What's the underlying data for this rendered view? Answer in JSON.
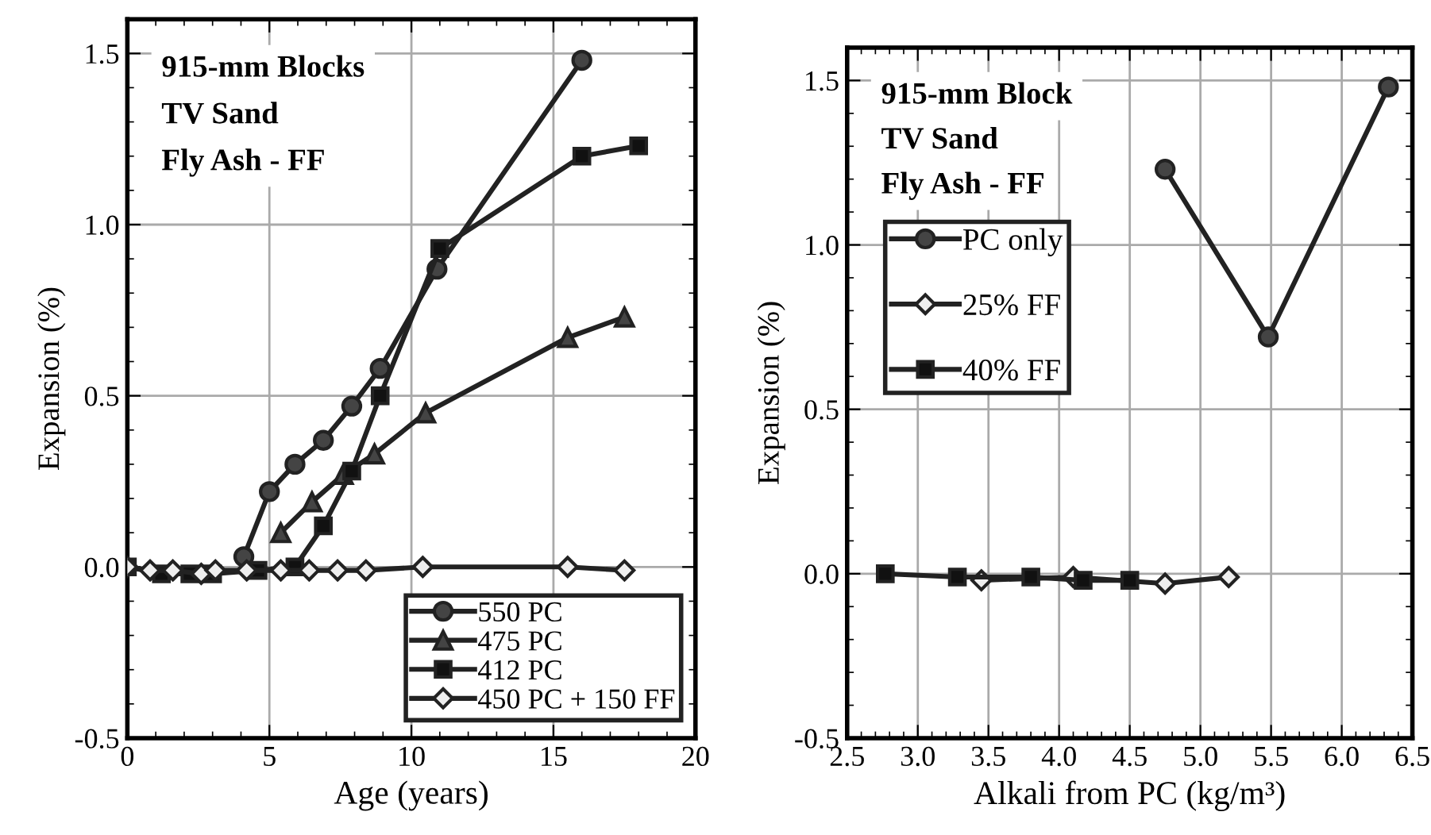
{
  "chart_data": [
    {
      "type": "line",
      "xlabel": "Age (years)",
      "ylabel": "Expansion (%)",
      "xlim": [
        0,
        20
      ],
      "xticks": [
        0,
        5,
        10,
        15,
        20
      ],
      "ylim": [
        -0.5,
        1.6
      ],
      "yticks": [
        {
          "value": -0.5,
          "label": "-0.5"
        },
        {
          "value": 0,
          "label": "0.0"
        },
        {
          "value": 0.5,
          "label": "0.5"
        },
        {
          "value": 1.0,
          "label": "1.0"
        },
        {
          "value": 1.5,
          "label": "1.5"
        }
      ],
      "grid": true,
      "legend": "bottom right",
      "annotations": [
        "915-mm Blocks",
        "TV Sand",
        "Fly Ash - FF"
      ],
      "series": [
        {
          "name": "550 PC",
          "color": "#222222",
          "marker": "circle",
          "x": [
            4.1,
            5.0,
            5.9,
            6.9,
            7.9,
            8.9,
            10.9,
            16.0
          ],
          "values": [
            0.03,
            0.22,
            0.3,
            0.37,
            0.47,
            0.58,
            0.87,
            1.48
          ]
        },
        {
          "name": "475 PC",
          "color": "#222222",
          "marker": "triangle",
          "x": [
            5.4,
            6.5,
            7.6,
            8.7,
            10.5,
            15.5,
            17.5
          ],
          "values": [
            0.1,
            0.19,
            0.27,
            0.33,
            0.45,
            0.67,
            0.73
          ]
        },
        {
          "name": "412 PC",
          "color": "#222222",
          "marker": "square",
          "x": [
            0,
            1.2,
            2.2,
            3.0,
            4.6,
            5.9,
            6.9,
            7.9,
            8.9,
            11.0,
            16.0,
            18.0
          ],
          "values": [
            0,
            -0.02,
            -0.02,
            -0.02,
            -0.01,
            0.0,
            0.12,
            0.28,
            0.5,
            0.93,
            1.2,
            1.23
          ]
        },
        {
          "name": "450 PC + 150 FF",
          "color": "#222222",
          "marker": "diamond",
          "x": [
            0,
            0.8,
            1.6,
            2.6,
            3.1,
            4.2,
            5.4,
            6.4,
            7.4,
            8.4,
            10.4,
            15.5,
            17.5
          ],
          "values": [
            0,
            -0.01,
            -0.01,
            -0.02,
            -0.01,
            -0.01,
            -0.01,
            -0.01,
            -0.01,
            -0.01,
            0.0,
            0.0,
            -0.01
          ]
        }
      ]
    },
    {
      "type": "line",
      "xlabel": "Alkali from PC (kg/m³)",
      "ylabel": "Expansion (%)",
      "xlim": [
        2.5,
        6.5
      ],
      "xticks": [
        {
          "value": 2.5,
          "label": "2.5"
        },
        {
          "value": 3.0,
          "label": "3.0"
        },
        {
          "value": 3.5,
          "label": "3.5"
        },
        {
          "value": 4.0,
          "label": "4.0"
        },
        {
          "value": 4.5,
          "label": "4.5"
        },
        {
          "value": 5.0,
          "label": "5.0"
        },
        {
          "value": 5.5,
          "label": "5.5"
        },
        {
          "value": 6.0,
          "label": "6.0"
        },
        {
          "value": 6.5,
          "label": "6.5"
        }
      ],
      "ylim": [
        -0.5,
        1.6
      ],
      "yticks": [
        {
          "value": -0.5,
          "label": "-0.5"
        },
        {
          "value": 0,
          "label": "0.0"
        },
        {
          "value": 0.5,
          "label": "0.5"
        },
        {
          "value": 1.0,
          "label": "1.0"
        },
        {
          "value": 1.5,
          "label": "1.5"
        }
      ],
      "grid": true,
      "legend": "top left",
      "annotations": [
        "915-mm Block",
        "TV Sand",
        "Fly Ash - FF"
      ],
      "series": [
        {
          "name": "PC only",
          "color": "#222222",
          "marker": "circle",
          "x": [
            4.75,
            5.48,
            6.33
          ],
          "values": [
            1.23,
            0.72,
            1.48
          ]
        },
        {
          "name": "25% FF",
          "color": "#222222",
          "marker": "diamond",
          "x": [
            3.45,
            4.1,
            4.75,
            5.2
          ],
          "values": [
            -0.02,
            -0.01,
            -0.03,
            -0.01
          ]
        },
        {
          "name": "40% FF",
          "color": "#222222",
          "marker": "square",
          "x": [
            2.77,
            3.28,
            3.8,
            4.17,
            4.5
          ],
          "values": [
            0.0,
            -0.01,
            -0.01,
            -0.02,
            -0.02
          ]
        }
      ]
    }
  ]
}
